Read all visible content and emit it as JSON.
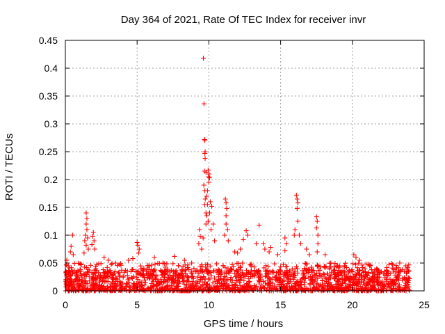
{
  "chart_data": {
    "type": "scatter",
    "title": "Day 364 of 2021, Rate Of TEC Index for receiver invr",
    "xlabel": "GPS time / hours",
    "ylabel": "ROTI / TECUs",
    "xlim": [
      0,
      25
    ],
    "ylim": [
      0,
      0.45
    ],
    "x_ticks": [
      0,
      5,
      10,
      15,
      20,
      25
    ],
    "x_tick_labels": [
      "0",
      "5",
      "10",
      "15",
      "20",
      "25"
    ],
    "y_ticks": [
      0,
      0.05,
      0.1,
      0.15,
      0.2,
      0.25,
      0.3,
      0.35,
      0.4,
      0.45
    ],
    "y_tick_labels": [
      "0",
      "0.05",
      "0.1",
      "0.15",
      "0.2",
      "0.25",
      "0.3",
      "0.35",
      "0.4",
      "0.45"
    ],
    "grid": true,
    "marker": "+",
    "marker_color": "#ff0000",
    "series": [
      {
        "name": "ROTI",
        "color": "#ff0000",
        "points": [
          [
            9.62,
            0.418
          ],
          [
            9.66,
            0.336
          ],
          [
            9.7,
            0.272
          ],
          [
            9.72,
            0.27
          ],
          [
            9.74,
            0.25
          ],
          [
            9.72,
            0.247
          ],
          [
            9.74,
            0.238
          ],
          [
            9.7,
            0.215
          ],
          [
            9.8,
            0.213
          ],
          [
            9.95,
            0.217
          ],
          [
            10.02,
            0.21
          ],
          [
            9.98,
            0.205
          ],
          [
            10.05,
            0.203
          ],
          [
            10.0,
            0.195
          ],
          [
            9.65,
            0.19
          ],
          [
            9.72,
            0.18
          ],
          [
            9.9,
            0.18
          ],
          [
            9.85,
            0.17
          ],
          [
            9.75,
            0.165
          ],
          [
            9.7,
            0.155
          ],
          [
            9.9,
            0.155
          ],
          [
            10.1,
            0.16
          ],
          [
            10.2,
            0.152
          ],
          [
            9.8,
            0.14
          ],
          [
            9.85,
            0.135
          ],
          [
            10.05,
            0.14
          ],
          [
            9.95,
            0.125
          ],
          [
            9.8,
            0.12
          ],
          [
            10.15,
            0.11
          ],
          [
            10.3,
            0.12
          ],
          [
            9.35,
            0.11
          ],
          [
            9.4,
            0.098
          ],
          [
            9.3,
            0.085
          ],
          [
            9.5,
            0.075
          ],
          [
            10.4,
            0.09
          ],
          [
            9.6,
            0.095
          ],
          [
            11.15,
            0.165
          ],
          [
            11.2,
            0.158
          ],
          [
            11.25,
            0.148
          ],
          [
            11.2,
            0.135
          ],
          [
            11.2,
            0.12
          ],
          [
            11.3,
            0.11
          ],
          [
            11.1,
            0.1
          ],
          [
            11.35,
            0.09
          ],
          [
            16.1,
            0.172
          ],
          [
            16.15,
            0.165
          ],
          [
            16.2,
            0.158
          ],
          [
            16.15,
            0.148
          ],
          [
            16.2,
            0.125
          ],
          [
            16.0,
            0.11
          ],
          [
            15.95,
            0.1
          ],
          [
            16.3,
            0.1
          ],
          [
            16.4,
            0.085
          ],
          [
            17.5,
            0.133
          ],
          [
            17.55,
            0.125
          ],
          [
            17.5,
            0.113
          ],
          [
            17.6,
            0.1
          ],
          [
            17.6,
            0.085
          ],
          [
            17.55,
            0.07
          ],
          [
            15.3,
            0.095
          ],
          [
            15.4,
            0.085
          ],
          [
            15.3,
            0.072
          ],
          [
            13.5,
            0.118
          ],
          [
            12.6,
            0.108
          ],
          [
            12.7,
            0.1
          ],
          [
            13.3,
            0.085
          ],
          [
            12.4,
            0.092
          ],
          [
            14.2,
            0.07
          ],
          [
            14.3,
            0.078
          ],
          [
            13.8,
            0.085
          ],
          [
            13.9,
            0.075
          ],
          [
            1.45,
            0.14
          ],
          [
            1.5,
            0.13
          ],
          [
            1.45,
            0.12
          ],
          [
            1.5,
            0.11
          ],
          [
            1.4,
            0.1
          ],
          [
            1.55,
            0.095
          ],
          [
            1.35,
            0.09
          ],
          [
            1.45,
            0.082
          ],
          [
            1.6,
            0.075
          ],
          [
            1.3,
            0.068
          ],
          [
            1.95,
            0.105
          ],
          [
            1.9,
            0.098
          ],
          [
            2.0,
            0.09
          ],
          [
            1.85,
            0.083
          ],
          [
            2.05,
            0.075
          ],
          [
            0.5,
            0.1
          ],
          [
            0.4,
            0.08
          ],
          [
            0.35,
            0.07
          ],
          [
            0.55,
            0.065
          ],
          [
            5.0,
            0.087
          ],
          [
            5.05,
            0.082
          ],
          [
            5.15,
            0.075
          ],
          [
            5.1,
            0.068
          ],
          [
            6.2,
            0.06
          ],
          [
            7.6,
            0.062
          ],
          [
            8.8,
            0.05
          ],
          [
            12.0,
            0.068
          ],
          [
            12.2,
            0.075
          ],
          [
            20.1,
            0.065
          ],
          [
            20.25,
            0.06
          ],
          [
            20.5,
            0.055
          ],
          [
            19.1,
            0.045
          ],
          [
            18.1,
            0.065
          ],
          [
            21.2,
            0.045
          ],
          [
            22.4,
            0.042
          ],
          [
            23.3,
            0.05
          ],
          [
            23.7,
            0.045
          ],
          [
            3.0,
            0.055
          ],
          [
            3.5,
            0.05
          ],
          [
            2.7,
            0.06
          ],
          [
            4.4,
            0.055
          ],
          [
            4.7,
            0.058
          ],
          [
            6.8,
            0.05
          ],
          [
            8.3,
            0.055
          ],
          [
            11.8,
            0.07
          ],
          [
            14.8,
            0.065
          ],
          [
            16.8,
            0.075
          ],
          [
            17.0,
            0.065
          ],
          [
            18.5,
            0.05
          ],
          [
            19.6,
            0.042
          ],
          [
            21.7,
            0.04
          ],
          [
            22.9,
            0.038
          ],
          [
            23.9,
            0.035
          ],
          [
            0.1,
            0.055
          ],
          [
            0.2,
            0.045
          ]
        ],
        "baseline_band": {
          "x_range": [
            0,
            24
          ],
          "typical_max": 0.035,
          "description": "dense cluster of ROTI values 0 to ~0.035 TECUs across the whole day"
        }
      }
    ]
  }
}
